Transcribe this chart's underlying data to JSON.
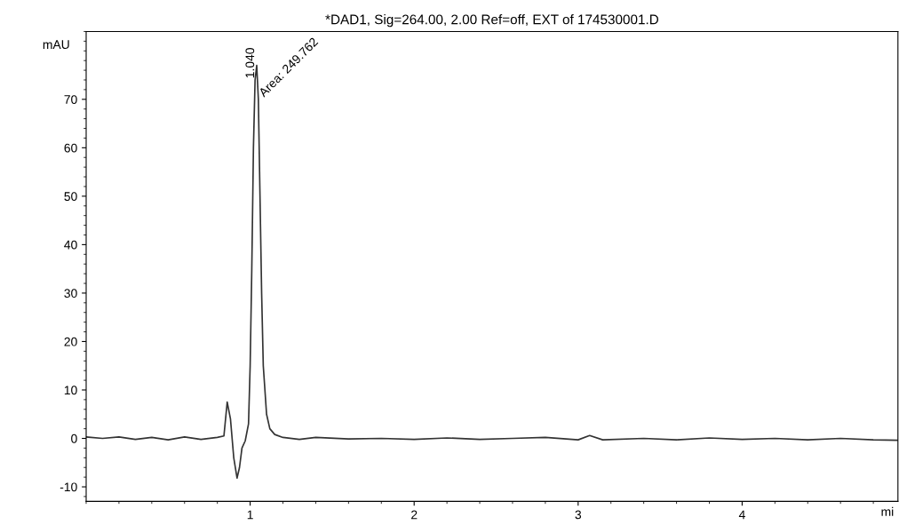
{
  "chart_data": {
    "type": "line",
    "title": "*DAD1, Sig=264.00, 2.00 Ref=off, EXT of 174530001.D",
    "xlabel": "mi",
    "ylabel": "mAU",
    "series": [
      {
        "color": "#333333",
        "x": [
          0.0,
          0.1,
          0.2,
          0.3,
          0.4,
          0.5,
          0.6,
          0.7,
          0.8,
          0.84,
          0.86,
          0.88,
          0.9,
          0.92,
          0.935,
          0.95,
          0.97,
          0.99,
          1.0,
          1.01,
          1.02,
          1.03,
          1.04,
          1.05,
          1.06,
          1.07,
          1.08,
          1.1,
          1.12,
          1.15,
          1.2,
          1.3,
          1.4,
          1.6,
          1.8,
          2.0,
          2.2,
          2.4,
          2.6,
          2.8,
          3.0,
          3.07,
          3.15,
          3.4,
          3.6,
          3.8,
          4.0,
          4.2,
          4.4,
          4.6,
          4.8,
          4.95
        ],
        "values": [
          0.3,
          0.0,
          0.3,
          -0.2,
          0.2,
          -0.3,
          0.3,
          -0.2,
          0.2,
          0.5,
          7.5,
          4.0,
          -4.0,
          -8.2,
          -6.0,
          -2.0,
          -0.5,
          3.0,
          15.0,
          35.0,
          60.0,
          74.0,
          77.0,
          70.0,
          50.0,
          30.0,
          15.0,
          5.0,
          2.0,
          0.8,
          0.2,
          -0.2,
          0.2,
          -0.1,
          0.0,
          -0.2,
          0.1,
          -0.2,
          0.0,
          0.2,
          -0.3,
          0.6,
          -0.3,
          0.0,
          -0.3,
          0.1,
          -0.2,
          0.0,
          -0.3,
          0.0,
          -0.3,
          -0.4
        ]
      }
    ],
    "xlim": [
      0,
      4.95
    ],
    "ylim": [
      -13,
      84
    ],
    "xticks": [
      1,
      2,
      3,
      4
    ],
    "yticks": [
      -10,
      0,
      10,
      20,
      30,
      40,
      50,
      60,
      70
    ],
    "annotations": [
      {
        "text": "1.040",
        "x": 1.04,
        "y": 77
      },
      {
        "text": "Area: 249.762",
        "x": 1.05,
        "y": 70
      }
    ],
    "grid": false,
    "legend": false
  }
}
